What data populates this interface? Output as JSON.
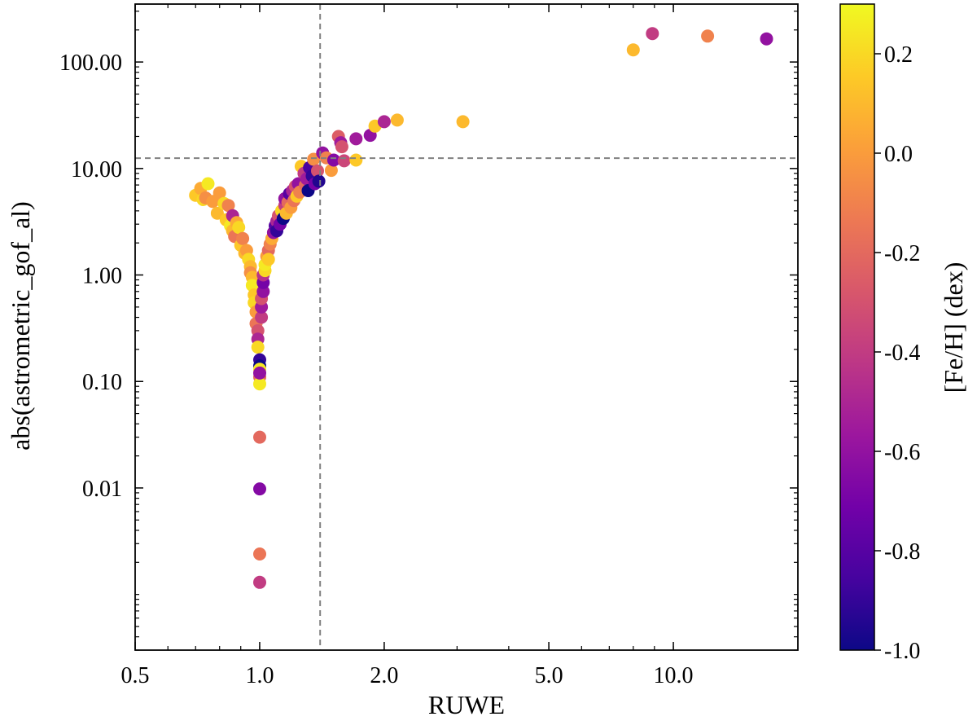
{
  "chart_data": {
    "type": "scatter",
    "title": "",
    "xlabel": "RUWE",
    "ylabel": "abs(astrometric_gof_al)",
    "xscale": "log",
    "yscale": "log",
    "xlim": [
      0.5,
      20
    ],
    "ylim": [
      0.0003,
      350
    ],
    "x_ticks": [
      0.5,
      1.0,
      2.0,
      5.0,
      10.0
    ],
    "x_tick_labels": [
      "0.5",
      "1.0",
      "2.0",
      "5.0",
      "10.0"
    ],
    "y_ticks": [
      0.01,
      0.1,
      1,
      10,
      100
    ],
    "y_tick_labels": [
      "0.01",
      "0.10",
      "1.00",
      "10.00",
      "100.00"
    ],
    "reference_lines": {
      "vertical_x": 1.4,
      "horizontal_y": 12.5
    },
    "colorbar": {
      "label": "[Fe/H] (dex)",
      "colormap": "plasma",
      "range": [
        -1.0,
        0.3
      ],
      "ticks": [
        -1.0,
        -0.8,
        -0.6,
        -0.4,
        -0.2,
        0.0,
        0.2
      ],
      "tick_labels": [
        "-1.0",
        "-0.8",
        "-0.6",
        "-0.4",
        "-0.2",
        "0.0",
        "0.2"
      ]
    },
    "colors": {
      "plasma": [
        "#0d0887",
        "#46039f",
        "#7201a8",
        "#9c179e",
        "#bd3786",
        "#d8576b",
        "#ed7953",
        "#fb9f3a",
        "#fdca26",
        "#f0f921"
      ],
      "reference_line": "#808080"
    },
    "points": [
      {
        "x": 0.7,
        "y": 5.6,
        "c": 0.15
      },
      {
        "x": 0.72,
        "y": 6.5,
        "c": 0.05
      },
      {
        "x": 0.73,
        "y": 5.1,
        "c": 0.2
      },
      {
        "x": 0.75,
        "y": 7.2,
        "c": 0.25
      },
      {
        "x": 0.74,
        "y": 5.3,
        "c": -0.05
      },
      {
        "x": 0.77,
        "y": 4.9,
        "c": 0.0
      },
      {
        "x": 0.79,
        "y": 3.8,
        "c": 0.1
      },
      {
        "x": 0.8,
        "y": 5.9,
        "c": 0.0
      },
      {
        "x": 0.82,
        "y": 4.7,
        "c": 0.2
      },
      {
        "x": 0.83,
        "y": 3.3,
        "c": 0.15
      },
      {
        "x": 0.84,
        "y": 4.5,
        "c": -0.1
      },
      {
        "x": 0.85,
        "y": 2.9,
        "c": 0.25
      },
      {
        "x": 0.86,
        "y": 2.6,
        "c": 0.1
      },
      {
        "x": 0.86,
        "y": 3.6,
        "c": -0.5
      },
      {
        "x": 0.87,
        "y": 2.3,
        "c": -0.15
      },
      {
        "x": 0.88,
        "y": 3.1,
        "c": 0.05
      },
      {
        "x": 0.89,
        "y": 2.8,
        "c": 0.2
      },
      {
        "x": 0.9,
        "y": 1.9,
        "c": 0.15
      },
      {
        "x": 0.91,
        "y": 2.2,
        "c": -0.1
      },
      {
        "x": 0.92,
        "y": 1.6,
        "c": 0.1
      },
      {
        "x": 0.93,
        "y": 1.7,
        "c": 0.0
      },
      {
        "x": 0.94,
        "y": 1.4,
        "c": 0.2
      },
      {
        "x": 0.95,
        "y": 1.2,
        "c": 0.1
      },
      {
        "x": 0.95,
        "y": 1.05,
        "c": -0.05
      },
      {
        "x": 0.96,
        "y": 0.95,
        "c": 0.1
      },
      {
        "x": 0.96,
        "y": 0.8,
        "c": 0.25
      },
      {
        "x": 0.97,
        "y": 0.65,
        "c": 0.15
      },
      {
        "x": 0.97,
        "y": 0.55,
        "c": 0.2
      },
      {
        "x": 0.98,
        "y": 0.45,
        "c": 0.0
      },
      {
        "x": 0.98,
        "y": 0.35,
        "c": -0.15
      },
      {
        "x": 0.99,
        "y": 0.3,
        "c": -0.3
      },
      {
        "x": 0.99,
        "y": 0.25,
        "c": -0.5
      },
      {
        "x": 0.99,
        "y": 0.21,
        "c": 0.2
      },
      {
        "x": 1.0,
        "y": 0.16,
        "c": -0.9
      },
      {
        "x": 1.0,
        "y": 0.14,
        "c": -1.0
      },
      {
        "x": 1.0,
        "y": 0.13,
        "c": 0.25
      },
      {
        "x": 1.0,
        "y": 0.11,
        "c": -0.2
      },
      {
        "x": 1.0,
        "y": 0.095,
        "c": 0.25
      },
      {
        "x": 1.0,
        "y": 0.12,
        "c": -0.6
      },
      {
        "x": 1.0,
        "y": 0.03,
        "c": -0.2
      },
      {
        "x": 1.0,
        "y": 0.0098,
        "c": -0.65
      },
      {
        "x": 1.0,
        "y": 0.0024,
        "c": -0.15
      },
      {
        "x": 1.0,
        "y": 0.0013,
        "c": -0.4
      },
      {
        "x": 1.01,
        "y": 0.4,
        "c": -0.4
      },
      {
        "x": 1.01,
        "y": 0.5,
        "c": -0.55
      },
      {
        "x": 1.01,
        "y": 0.6,
        "c": -0.3
      },
      {
        "x": 1.02,
        "y": 0.7,
        "c": -0.6
      },
      {
        "x": 1.02,
        "y": 0.85,
        "c": -0.7
      },
      {
        "x": 1.02,
        "y": 1.0,
        "c": -0.45
      },
      {
        "x": 1.03,
        "y": 1.1,
        "c": 0.2
      },
      {
        "x": 1.03,
        "y": 1.25,
        "c": 0.25
      },
      {
        "x": 1.04,
        "y": 1.5,
        "c": 0.0
      },
      {
        "x": 1.05,
        "y": 1.7,
        "c": -0.2
      },
      {
        "x": 1.05,
        "y": 1.4,
        "c": 0.15
      },
      {
        "x": 1.06,
        "y": 1.95,
        "c": -0.1
      },
      {
        "x": 1.07,
        "y": 2.2,
        "c": 0.05
      },
      {
        "x": 1.08,
        "y": 2.5,
        "c": -0.6
      },
      {
        "x": 1.09,
        "y": 2.9,
        "c": -0.8
      },
      {
        "x": 1.1,
        "y": 3.2,
        "c": -0.5
      },
      {
        "x": 1.1,
        "y": 2.6,
        "c": -0.9
      },
      {
        "x": 1.11,
        "y": 3.6,
        "c": -0.3
      },
      {
        "x": 1.12,
        "y": 3.0,
        "c": -0.7
      },
      {
        "x": 1.13,
        "y": 4.0,
        "c": 0.2
      },
      {
        "x": 1.14,
        "y": 3.4,
        "c": -1.0
      },
      {
        "x": 1.15,
        "y": 4.5,
        "c": -0.4
      },
      {
        "x": 1.15,
        "y": 5.2,
        "c": -0.6
      },
      {
        "x": 1.16,
        "y": 3.8,
        "c": 0.1
      },
      {
        "x": 1.17,
        "y": 4.8,
        "c": -0.2
      },
      {
        "x": 1.18,
        "y": 5.8,
        "c": -0.8
      },
      {
        "x": 1.19,
        "y": 4.3,
        "c": 0.0
      },
      {
        "x": 1.2,
        "y": 6.2,
        "c": -0.5
      },
      {
        "x": 1.21,
        "y": 5.0,
        "c": -0.15
      },
      {
        "x": 1.22,
        "y": 6.8,
        "c": -0.3
      },
      {
        "x": 1.23,
        "y": 5.5,
        "c": 0.15
      },
      {
        "x": 1.24,
        "y": 7.2,
        "c": -0.6
      },
      {
        "x": 1.25,
        "y": 6.0,
        "c": -0.1
      },
      {
        "x": 1.26,
        "y": 10.5,
        "c": 0.15
      },
      {
        "x": 1.28,
        "y": 9.0,
        "c": -0.4
      },
      {
        "x": 1.29,
        "y": 7.0,
        "c": -0.2
      },
      {
        "x": 1.3,
        "y": 8.0,
        "c": -0.55
      },
      {
        "x": 1.31,
        "y": 6.2,
        "c": -1.0
      },
      {
        "x": 1.32,
        "y": 10.2,
        "c": -0.85
      },
      {
        "x": 1.34,
        "y": 8.5,
        "c": -0.9
      },
      {
        "x": 1.35,
        "y": 12.2,
        "c": -0.05
      },
      {
        "x": 1.36,
        "y": 7.2,
        "c": -0.7
      },
      {
        "x": 1.38,
        "y": 9.5,
        "c": -0.3
      },
      {
        "x": 1.39,
        "y": 7.6,
        "c": -0.95
      },
      {
        "x": 1.42,
        "y": 14.0,
        "c": -0.6
      },
      {
        "x": 1.45,
        "y": 12.6,
        "c": -0.1
      },
      {
        "x": 1.49,
        "y": 9.6,
        "c": 0.0
      },
      {
        "x": 1.51,
        "y": 12.0,
        "c": -0.65
      },
      {
        "x": 1.55,
        "y": 20.0,
        "c": -0.25
      },
      {
        "x": 1.57,
        "y": 17.5,
        "c": -0.55
      },
      {
        "x": 1.58,
        "y": 16.0,
        "c": -0.3
      },
      {
        "x": 1.6,
        "y": 11.8,
        "c": -0.35
      },
      {
        "x": 1.71,
        "y": 12.0,
        "c": 0.15
      },
      {
        "x": 1.71,
        "y": 19.0,
        "c": -0.55
      },
      {
        "x": 1.85,
        "y": 20.5,
        "c": -0.6
      },
      {
        "x": 1.9,
        "y": 25.0,
        "c": 0.15
      },
      {
        "x": 2.0,
        "y": 27.5,
        "c": -0.5
      },
      {
        "x": 2.15,
        "y": 28.5,
        "c": 0.1
      },
      {
        "x": 3.1,
        "y": 27.5,
        "c": 0.1
      },
      {
        "x": 8.0,
        "y": 130,
        "c": 0.1
      },
      {
        "x": 8.9,
        "y": 185,
        "c": -0.4
      },
      {
        "x": 12.1,
        "y": 175,
        "c": -0.1
      },
      {
        "x": 16.8,
        "y": 165,
        "c": -0.6
      }
    ]
  }
}
